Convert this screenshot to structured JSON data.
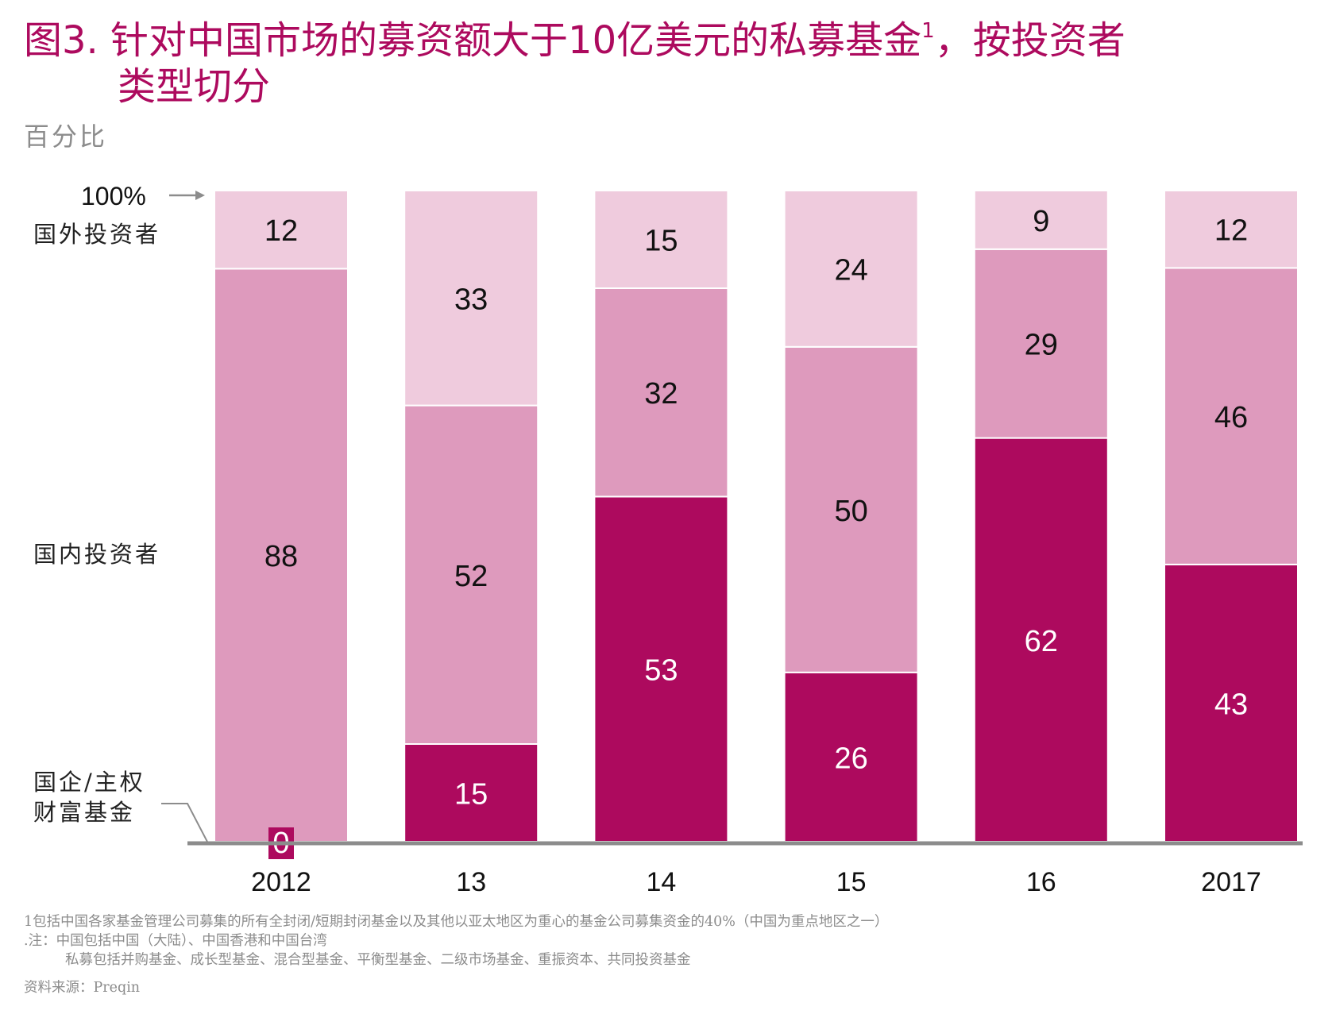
{
  "title_line1": "图3. 针对中国市场的募资额大于10亿美元的私募基金",
  "title_sup": "1",
  "title_line1_end": "，按投资者",
  "title_line2": "类型切分",
  "subtitle": "百分比",
  "hundred_label": "100%",
  "colors": {
    "title": "#ad0a5e",
    "soe": "#ad0a5e",
    "domestic": "#de9abd",
    "foreign": "#efcbdd",
    "axis": "#8c8c8c"
  },
  "chart_data": {
    "type": "bar",
    "stacked": true,
    "categories": [
      "2012",
      "13",
      "14",
      "15",
      "16",
      "2017"
    ],
    "ylim": [
      0,
      100
    ],
    "series": [
      {
        "name": "国企/主权财富基金",
        "color": "#ad0a5e",
        "label_color": "#ffffff",
        "values": [
          0,
          15,
          53,
          26,
          62,
          43
        ]
      },
      {
        "name": "国内投资者",
        "color": "#de9abd",
        "label_color": "#111111",
        "values": [
          88,
          52,
          32,
          50,
          29,
          46
        ]
      },
      {
        "name": "国外投资者",
        "color": "#efcbdd",
        "label_color": "#111111",
        "values": [
          12,
          33,
          15,
          24,
          9,
          12
        ]
      }
    ],
    "series_labels": {
      "foreign": "国外投资者",
      "domestic": "国内投资者",
      "soe_line1": "国企/主权",
      "soe_line2": "财富基金"
    }
  },
  "footnotes": [
    "1包括中国各家基金管理公司募集的所有全封闭/短期封闭基金以及其他以亚太地区为重心的基金公司募集资金的40%（中国为重点地区之一）",
    ".注：中国包括中国（大陆）、中国香港和中国台湾",
    "私募包括并购基金、成长型基金、混合型基金、平衡型基金、二级市场基金、重振资本、共同投资基金",
    "资料来源：Preqin"
  ]
}
